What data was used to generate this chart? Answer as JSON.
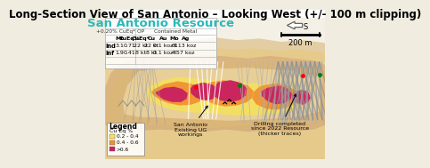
{
  "title": "Long-Section View of San Antonio – Looking West (+/- 100 m clipping)",
  "subtitle": "San Antonio Resource",
  "subtitle_color": "#2DB8B8",
  "table_title_left": "+0.20% CuEq* OP",
  "table_title_right": "Contained Metal",
  "table_headers": [
    "",
    "Mt",
    "CuEq%",
    "CuEq*",
    "Cu",
    "Au",
    "Mo",
    "Ag"
  ],
  "table_rows": [
    [
      "Ind",
      "3.1",
      "0.71",
      "22 kt",
      "22 kt",
      "0.1 koz",
      "6t",
      "113 koz"
    ],
    [
      "Inf",
      "1.9",
      "0.41",
      "8 kt",
      "8 kt",
      "0.1 koz",
      "4t",
      "57 koz"
    ]
  ],
  "legend_title": "Legend",
  "legend_subtitle": "Cu Eq %",
  "legend_items": [
    {
      "label": "0.2 - 0.4",
      "color": "#F5E060"
    },
    {
      "label": "0.4 - 0.6",
      "color": "#F09030"
    },
    {
      "label": ">0.6",
      "color": "#C82060"
    }
  ],
  "annotation1_text": "San Antonio\nExisting UG\nworkings",
  "annotation2_text": "Drilling completed\nsince 2022 Resource\n(thicker traces)",
  "scale_text": "200 m",
  "compass_text": "S",
  "title_fontsize": 8.5,
  "subtitle_fontsize": 9.5,
  "bg_color": "#e8e0d0",
  "fig_bg": "#f0ece0"
}
